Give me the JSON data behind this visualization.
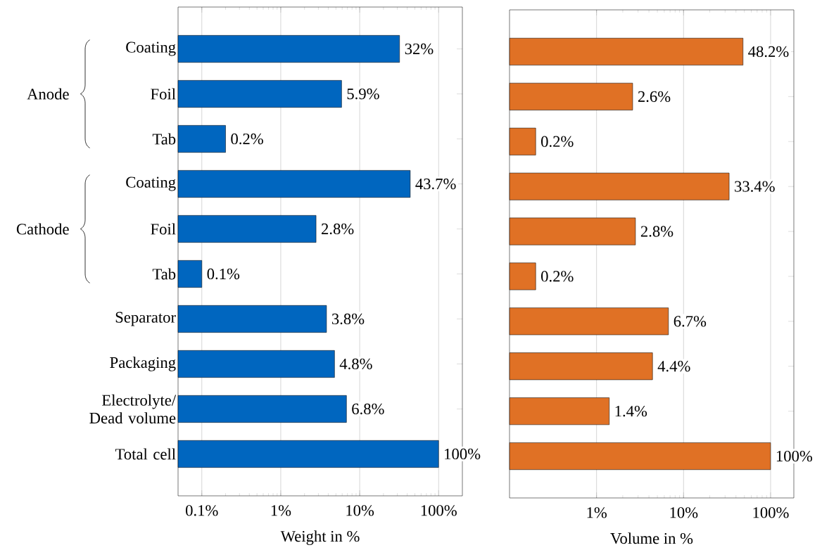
{
  "chart_data": [
    {
      "type": "bar",
      "orientation": "horizontal",
      "log": "x",
      "grid": "x",
      "xlabel": "Weight in %",
      "categories": [
        "Coating",
        "Foil",
        "Tab",
        "Coating",
        "Foil",
        "Tab",
        "Separator",
        "Packaging",
        "Electrolyte/ Dead volume",
        "Total cell"
      ],
      "values": [
        32,
        5.9,
        0.2,
        43.7,
        2.8,
        0.1,
        3.8,
        4.8,
        6.8,
        100
      ],
      "value_labels": [
        "32%",
        "5.9%",
        "0.2%",
        "43.7%",
        "2.8%",
        "0.1%",
        "3.8%",
        "4.8%",
        "6.8%",
        "100%"
      ],
      "color": "#0066bf",
      "xlim": [
        0.05,
        200
      ],
      "xticks": [
        {
          "value": 0.1,
          "label": "0.1%"
        },
        {
          "value": 1,
          "label": "1%"
        },
        {
          "value": 10,
          "label": "10%"
        },
        {
          "value": 100,
          "label": "100%"
        }
      ],
      "annotations": [
        "Anode",
        "Cathode"
      ]
    },
    {
      "type": "bar",
      "orientation": "horizontal",
      "log": "x",
      "grid": "x",
      "xlabel": "Volume in %",
      "tick_labels": "x",
      "categories": [
        null,
        null,
        null,
        null,
        null,
        null,
        null,
        null,
        null,
        null
      ],
      "values": [
        48.2,
        2.6,
        0.2,
        33.4,
        2.8,
        0.2,
        6.7,
        4.4,
        1.4,
        100
      ],
      "value_labels": [
        "48.2%",
        "2.6%",
        "0.2%",
        "33.4%",
        "2.8%",
        "0.2%",
        "6.7%",
        "4.4%",
        "1.4%",
        "100%"
      ],
      "color": "#e07125",
      "xlim": [
        0.1,
        185
      ],
      "xticks": [
        {
          "value": 1,
          "label": "1%"
        },
        {
          "value": 10,
          "label": "10%"
        },
        {
          "value": 100,
          "label": "100%"
        }
      ]
    }
  ]
}
